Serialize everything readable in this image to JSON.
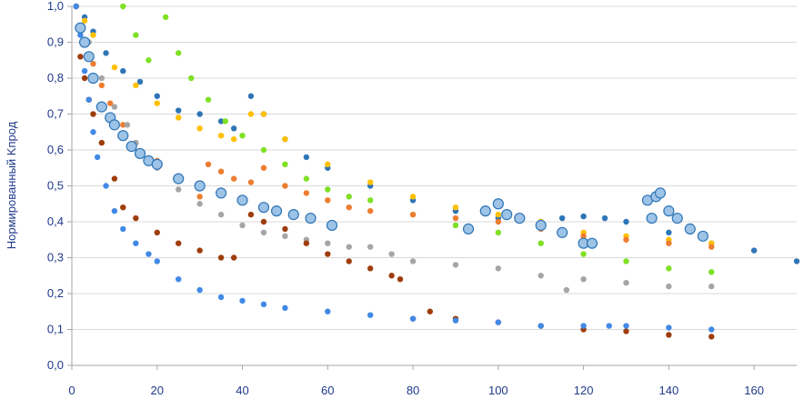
{
  "chart_data": {
    "type": "scatter",
    "title": "",
    "xlabel": "",
    "ylabel": "Нормированный Kпрод",
    "xlim": [
      0,
      170
    ],
    "ylim": [
      0,
      1
    ],
    "x_ticks": [
      0,
      20,
      40,
      60,
      80,
      100,
      120,
      140,
      160
    ],
    "y_ticks": [
      0,
      0.1,
      0.2,
      0.3,
      0.4,
      0.5,
      0.6,
      0.7,
      0.8,
      0.9,
      1.0
    ],
    "x_tick_labels": [
      "0",
      "20",
      "40",
      "60",
      "80",
      "100",
      "120",
      "140",
      "160"
    ],
    "y_tick_labels": [
      "0,0",
      "0,1",
      "0,2",
      "0,3",
      "0,4",
      "0,5",
      "0,6",
      "0,7",
      "0,8",
      "0,9",
      "1,0"
    ],
    "grid": true,
    "legend": "none",
    "series": [
      {
        "color": "#2e75b6",
        "marker_r": 3.2,
        "x": [
          1,
          3,
          5,
          8,
          12,
          16,
          20,
          25,
          30,
          35,
          38,
          42,
          45,
          50,
          55,
          60,
          70,
          80,
          90,
          100,
          110,
          115,
          120,
          125,
          130,
          140,
          150,
          160,
          170
        ],
        "y": [
          1.0,
          0.97,
          0.93,
          0.87,
          0.82,
          0.79,
          0.75,
          0.71,
          0.7,
          0.68,
          0.66,
          0.75,
          0.7,
          0.63,
          0.58,
          0.55,
          0.5,
          0.46,
          0.43,
          0.41,
          0.4,
          0.41,
          0.415,
          0.41,
          0.4,
          0.37,
          0.34,
          0.32,
          0.29
        ]
      },
      {
        "color": "#ffc000",
        "marker_r": 3.2,
        "x": [
          1,
          3,
          5,
          10,
          15,
          20,
          25,
          30,
          35,
          38,
          42,
          45,
          50,
          60,
          70,
          80,
          90,
          100,
          110,
          120,
          130,
          140,
          150
        ],
        "y": [
          1.0,
          0.96,
          0.92,
          0.83,
          0.78,
          0.73,
          0.69,
          0.66,
          0.64,
          0.63,
          0.7,
          0.7,
          0.63,
          0.56,
          0.51,
          0.47,
          0.44,
          0.42,
          0.4,
          0.37,
          0.36,
          0.35,
          0.34
        ]
      },
      {
        "color": "#7fe024",
        "marker_r": 3.2,
        "x": [
          12,
          15,
          18,
          22,
          25,
          28,
          32,
          36,
          40,
          45,
          50,
          55,
          60,
          65,
          70,
          80,
          90,
          100,
          110,
          120,
          130,
          140,
          150
        ],
        "y": [
          1.0,
          0.92,
          0.85,
          0.97,
          0.87,
          0.8,
          0.74,
          0.68,
          0.64,
          0.6,
          0.56,
          0.52,
          0.49,
          0.47,
          0.46,
          0.42,
          0.39,
          0.37,
          0.34,
          0.31,
          0.29,
          0.27,
          0.26
        ]
      },
      {
        "color": "#ed7d31",
        "marker_r": 3.2,
        "x": [
          1,
          3,
          5,
          7,
          9,
          12,
          15,
          20,
          25,
          30,
          32,
          35,
          38,
          42,
          45,
          50,
          55,
          60,
          65,
          70,
          80,
          90,
          100,
          110,
          120,
          130,
          140,
          150
        ],
        "y": [
          1.0,
          0.9,
          0.84,
          0.78,
          0.73,
          0.67,
          0.62,
          0.57,
          0.52,
          0.47,
          0.56,
          0.54,
          0.52,
          0.51,
          0.55,
          0.5,
          0.48,
          0.46,
          0.44,
          0.43,
          0.42,
          0.41,
          0.4,
          0.38,
          0.36,
          0.35,
          0.34,
          0.33
        ]
      },
      {
        "color": "#a5a5a5",
        "marker_r": 3.2,
        "x": [
          1,
          4,
          7,
          10,
          13,
          15,
          20,
          25,
          30,
          35,
          40,
          45,
          50,
          55,
          60,
          65,
          70,
          75,
          80,
          90,
          100,
          110,
          116,
          120,
          130,
          140,
          150
        ],
        "y": [
          1.0,
          0.9,
          0.8,
          0.72,
          0.67,
          0.62,
          0.55,
          0.49,
          0.45,
          0.42,
          0.39,
          0.37,
          0.36,
          0.35,
          0.34,
          0.33,
          0.33,
          0.31,
          0.29,
          0.28,
          0.27,
          0.25,
          0.21,
          0.24,
          0.23,
          0.22,
          0.22
        ]
      },
      {
        "color": "#9e3d0c",
        "marker_r": 3.2,
        "x": [
          1,
          2,
          3,
          4,
          5,
          7,
          10,
          12,
          15,
          20,
          25,
          30,
          35,
          38,
          42,
          45,
          50,
          55,
          60,
          65,
          70,
          75,
          77,
          80,
          84,
          90,
          100,
          110,
          120,
          130,
          140,
          150
        ],
        "y": [
          1.0,
          0.86,
          0.8,
          0.74,
          0.7,
          0.62,
          0.52,
          0.44,
          0.41,
          0.37,
          0.34,
          0.32,
          0.3,
          0.3,
          0.42,
          0.4,
          0.38,
          0.34,
          0.31,
          0.29,
          0.27,
          0.25,
          0.24,
          0.13,
          0.15,
          0.13,
          0.12,
          0.11,
          0.1,
          0.095,
          0.085,
          0.08
        ]
      },
      {
        "color": "#4189e6",
        "marker_r": 3.2,
        "x": [
          1,
          2,
          3,
          4,
          5,
          6,
          8,
          10,
          12,
          15,
          18,
          20,
          25,
          30,
          35,
          40,
          45,
          50,
          60,
          70,
          80,
          90,
          100,
          110,
          120,
          126,
          130,
          140,
          150
        ],
        "y": [
          1.0,
          0.92,
          0.82,
          0.74,
          0.65,
          0.58,
          0.5,
          0.43,
          0.38,
          0.34,
          0.31,
          0.29,
          0.24,
          0.21,
          0.19,
          0.18,
          0.17,
          0.16,
          0.15,
          0.14,
          0.13,
          0.125,
          0.12,
          0.11,
          0.11,
          0.11,
          0.11,
          0.105,
          0.1
        ]
      },
      {
        "color": "#9dc3e6",
        "stroke": "#2e75b6",
        "marker_r": 5.5,
        "x": [
          2,
          3,
          4,
          5,
          7,
          9,
          10,
          12,
          14,
          16,
          18,
          20,
          25,
          30,
          35,
          40,
          45,
          48,
          52,
          56,
          61,
          93,
          97,
          100,
          102,
          105,
          110,
          115,
          120,
          122,
          135,
          136,
          137,
          138,
          140,
          142,
          145,
          148
        ],
        "y": [
          0.94,
          0.9,
          0.86,
          0.8,
          0.72,
          0.69,
          0.67,
          0.64,
          0.61,
          0.59,
          0.57,
          0.56,
          0.52,
          0.5,
          0.48,
          0.46,
          0.44,
          0.43,
          0.42,
          0.41,
          0.39,
          0.38,
          0.43,
          0.45,
          0.42,
          0.41,
          0.39,
          0.37,
          0.34,
          0.34,
          0.46,
          0.41,
          0.47,
          0.48,
          0.43,
          0.41,
          0.38,
          0.36
        ]
      }
    ]
  }
}
